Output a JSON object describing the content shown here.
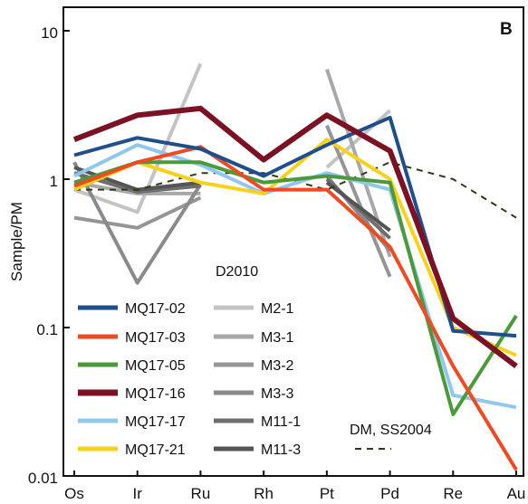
{
  "chart_data": {
    "type": "line",
    "panel_label": "B",
    "title": "",
    "xlabel": "",
    "ylabel": "Sample/PM",
    "y_scale": "log",
    "ylim": [
      0.01,
      10
    ],
    "yticks": [
      {
        "value": 10,
        "label": "10"
      },
      {
        "value": 1,
        "label": "1"
      },
      {
        "value": 0.1,
        "label": "0.1"
      },
      {
        "value": 0.01,
        "label": "0.01"
      }
    ],
    "categories": [
      "Os",
      "Ir",
      "Ru",
      "Rh",
      "Pt",
      "Pd",
      "Re",
      "Au"
    ],
    "grid": false,
    "annotation": "D2010",
    "series": [
      {
        "name": "MQ17-02",
        "color": "#1f4e8c",
        "width": 4,
        "values": [
          1.45,
          1.9,
          1.6,
          1.05,
          1.7,
          2.6,
          0.095,
          0.088
        ]
      },
      {
        "name": "MQ17-03",
        "color": "#ee4a23",
        "width": 4,
        "values": [
          0.9,
          1.3,
          1.65,
          0.85,
          0.85,
          0.35,
          0.055,
          0.011
        ]
      },
      {
        "name": "MQ17-05",
        "color": "#4a9a3c",
        "width": 4,
        "values": [
          0.95,
          1.3,
          1.3,
          0.95,
          1.05,
          0.95,
          0.026,
          0.12
        ]
      },
      {
        "name": "MQ17-16",
        "color": "#7b1123",
        "width": 6,
        "values": [
          1.85,
          2.7,
          3.0,
          1.35,
          2.7,
          1.55,
          0.115,
          0.055
        ]
      },
      {
        "name": "MQ17-17",
        "color": "#8fc8ec",
        "width": 4,
        "values": [
          1.05,
          1.7,
          1.25,
          0.8,
          1.1,
          0.85,
          0.035,
          0.029
        ]
      },
      {
        "name": "MQ17-21",
        "color": "#f7d21c",
        "width": 4,
        "values": [
          0.85,
          1.3,
          0.95,
          0.8,
          1.85,
          1.0,
          0.1,
          0.065
        ]
      },
      {
        "name": "M2-1",
        "color": "#c3c3c3",
        "width": 4,
        "values": [
          0.85,
          0.6,
          6.0,
          null,
          1.2,
          2.9,
          null,
          null
        ]
      },
      {
        "name": "M3-1",
        "color": "#a8a8a8",
        "width": 4,
        "values": [
          0.95,
          0.8,
          0.8,
          null,
          5.5,
          0.3,
          null,
          null
        ]
      },
      {
        "name": "M3-2",
        "color": "#959595",
        "width": 4,
        "values": [
          0.55,
          0.47,
          0.75,
          null,
          2.3,
          0.22,
          null,
          null
        ]
      },
      {
        "name": "M3-3",
        "color": "#8a8a8a",
        "width": 4,
        "values": [
          1.3,
          0.2,
          0.92,
          null,
          1.05,
          0.33,
          null,
          null
        ]
      },
      {
        "name": "M11-1",
        "color": "#6e6e6e",
        "width": 4,
        "values": [
          1.1,
          0.82,
          0.9,
          null,
          1.0,
          0.4,
          null,
          null
        ]
      },
      {
        "name": "M11-3",
        "color": "#555555",
        "width": 4,
        "values": [
          1.2,
          0.85,
          0.95,
          null,
          0.95,
          0.45,
          null,
          null
        ]
      },
      {
        "name": "DM, SS2004",
        "color": "#2e3a18",
        "width": 2,
        "dashed": true,
        "values": [
          0.85,
          0.85,
          1.1,
          1.1,
          0.85,
          1.3,
          1.0,
          0.55
        ]
      }
    ]
  }
}
